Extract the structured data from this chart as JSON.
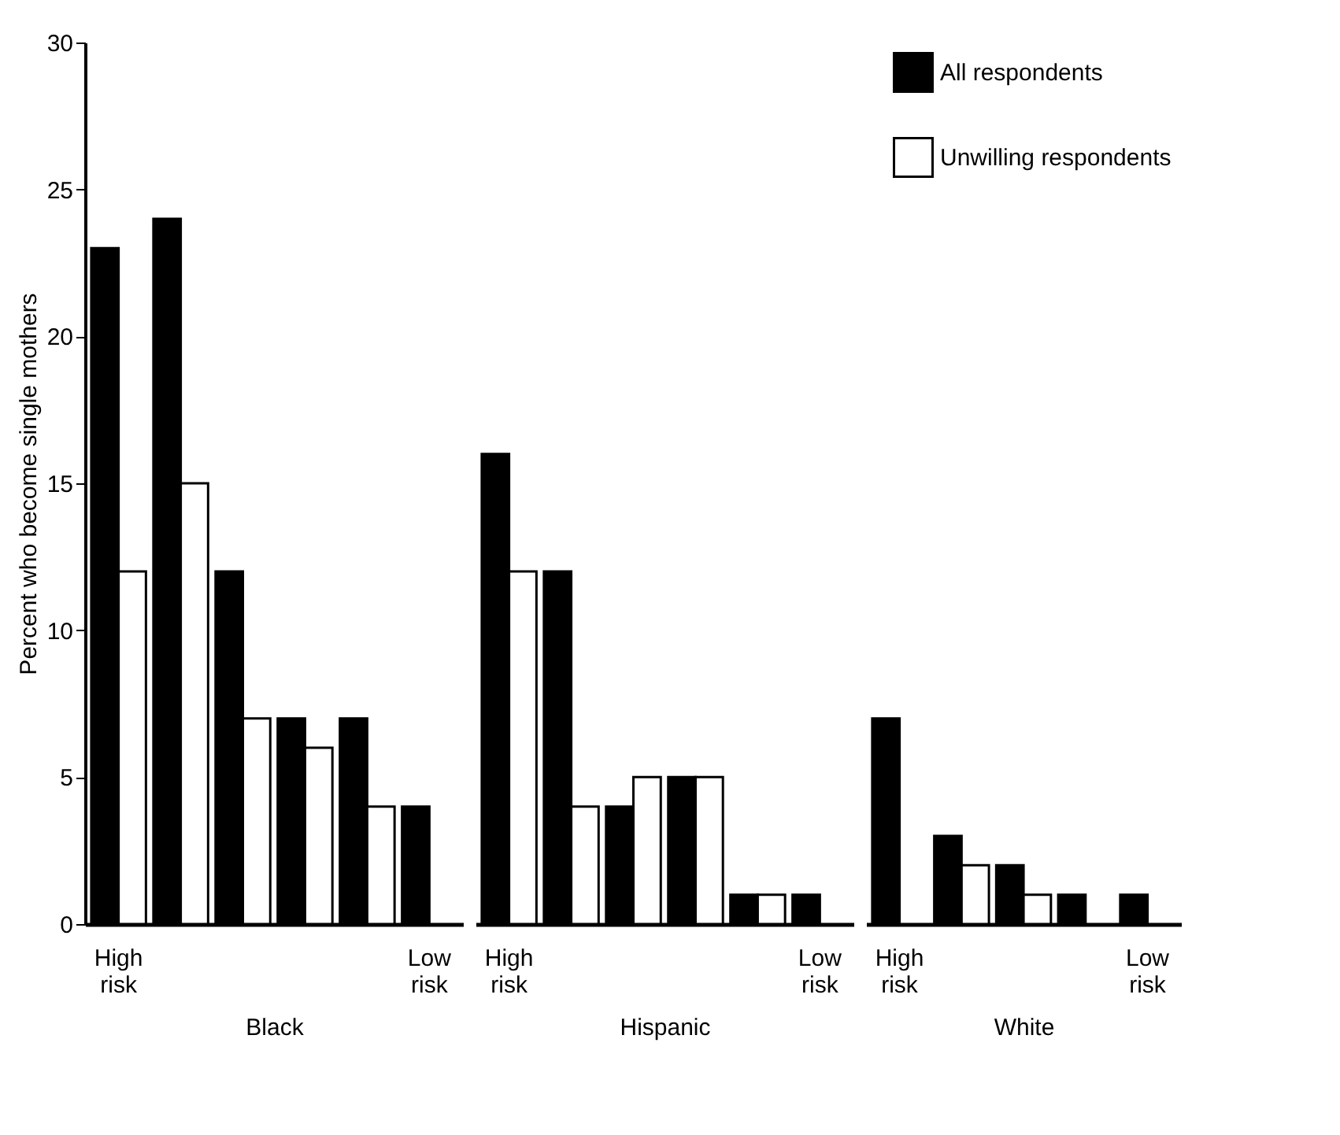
{
  "chart_data": [
    {
      "type": "bar",
      "xlabel": "Black",
      "ylabel": "Percent who become single mothers",
      "categories": [
        "High risk",
        null,
        null,
        null,
        null,
        "Low risk"
      ],
      "ylim": [
        0,
        30
      ],
      "yticks": [
        0,
        5,
        10,
        15,
        20,
        25,
        30
      ],
      "grid": false,
      "series": [
        {
          "color": "#000000",
          "values": [
            23,
            24,
            12,
            7,
            7,
            4
          ]
        },
        {
          "color": "#ffffff",
          "values": [
            12,
            15,
            7,
            6,
            4,
            null
          ]
        }
      ]
    },
    {
      "type": "bar",
      "xlabel": "Hispanic",
      "categories": [
        "High risk",
        null,
        null,
        null,
        null,
        "Low risk"
      ],
      "ylim": [
        0,
        30
      ],
      "tick_labels": "x",
      "grid": false,
      "series": [
        {
          "color": "#000000",
          "values": [
            16,
            12,
            4,
            5,
            1,
            1
          ]
        },
        {
          "color": "#ffffff",
          "values": [
            12,
            4,
            5,
            5,
            1,
            null
          ]
        }
      ]
    },
    {
      "type": "bar",
      "xlabel": "White",
      "categories": [
        "High risk",
        null,
        null,
        null,
        "Low risk"
      ],
      "ylim": [
        0,
        30
      ],
      "tick_labels": "x",
      "grid": false,
      "legend": "top right",
      "series": [
        {
          "name": "All respondents",
          "color": "#000000",
          "values": [
            7,
            3,
            2,
            1,
            1
          ]
        },
        {
          "name": "Unwilling respondents",
          "color": "#ffffff",
          "values": [
            null,
            2,
            1,
            null,
            null
          ]
        }
      ]
    }
  ]
}
